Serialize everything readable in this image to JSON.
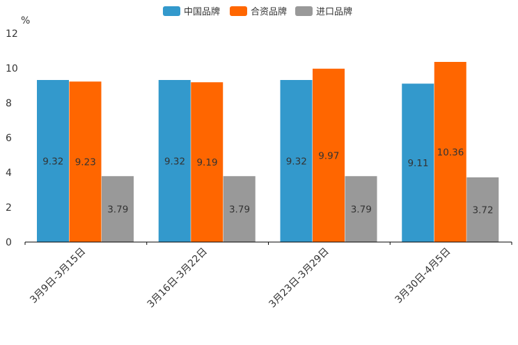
{
  "chart_data": {
    "type": "bar",
    "unit": "%",
    "categories": [
      "3月9日-3月15日",
      "3月16日-3月22日",
      "3月23日-3月29日",
      "3月30日-4月5日"
    ],
    "series": [
      {
        "name": "中国品牌",
        "color": "#3399cc",
        "values": [
          9.32,
          9.32,
          9.32,
          9.11
        ]
      },
      {
        "name": "合资品牌",
        "color": "#ff6600",
        "values": [
          9.23,
          9.19,
          9.97,
          10.36
        ]
      },
      {
        "name": "进口品牌",
        "color": "#999999",
        "values": [
          3.79,
          3.79,
          3.79,
          3.72
        ]
      }
    ],
    "ylim": [
      0,
      12
    ],
    "yticks": [
      0,
      2,
      4,
      6,
      8,
      10,
      12
    ],
    "ytick_labels": [
      "0",
      "2",
      "4",
      "6",
      "8",
      "10",
      "12"
    ],
    "grid": false,
    "legend_position": "top-center",
    "data_labels": true
  }
}
